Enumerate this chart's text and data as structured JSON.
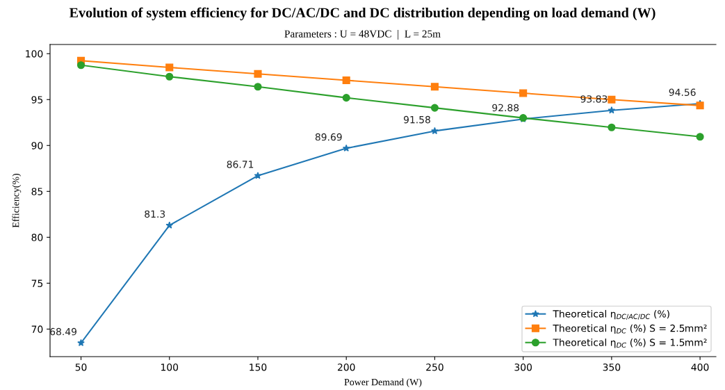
{
  "chart_data": {
    "type": "line",
    "title": "Evolution of system efficiency for DC/AC/DC and DC distribution depending on load demand (W)",
    "subtitle": "Parameters : U = 48VDC  |  L = 25m",
    "xlabel": "Power Demand (W)",
    "ylabel": "Efficiency(%)",
    "x": [
      50,
      100,
      150,
      200,
      250,
      300,
      350,
      400
    ],
    "series": [
      {
        "name": "Theoretical η$_{DC/AC/DC}$ (%)",
        "color": "#1f77b4",
        "marker": "star",
        "values": [
          68.49,
          81.3,
          86.71,
          89.69,
          91.58,
          92.88,
          93.83,
          94.56
        ],
        "value_labels": [
          "68.49",
          "81.3",
          "86.71",
          "89.69",
          "91.58",
          "92.88",
          "93.83",
          "94.56"
        ]
      },
      {
        "name": "Theoretical η$_{DC}$ (%) S = 2.5mm²",
        "color": "#ff7f0e",
        "marker": "square",
        "values": [
          99.24,
          98.5,
          97.8,
          97.1,
          96.4,
          95.7,
          95.0,
          94.35
        ]
      },
      {
        "name": "Theoretical η$_{DC}$ (%) S = 1.5mm²",
        "color": "#2ca02c",
        "marker": "circle",
        "values": [
          98.75,
          97.5,
          96.4,
          95.2,
          94.1,
          93.0,
          91.97,
          90.95
        ]
      }
    ],
    "xlim": [
      32.5,
      409
    ],
    "xticks": [
      50,
      100,
      150,
      200,
      250,
      300,
      350,
      400
    ],
    "ylim": [
      67,
      101
    ],
    "yticks": [
      70,
      75,
      80,
      85,
      90,
      95,
      100
    ],
    "grid": false,
    "legend": "bottom right",
    "line_style": "solid"
  }
}
